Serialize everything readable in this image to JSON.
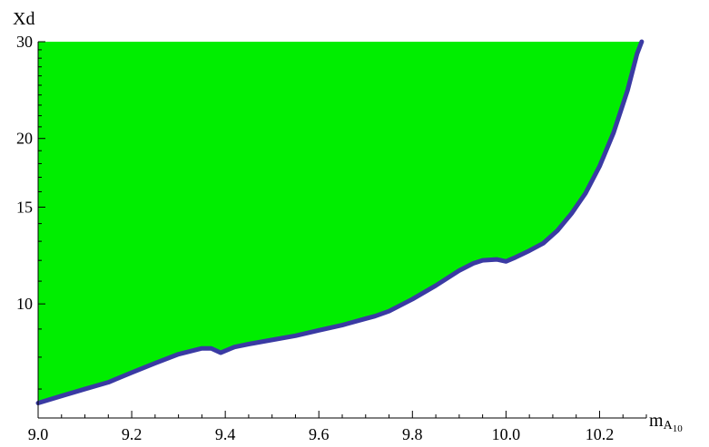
{
  "chart_data": {
    "type": "area",
    "title": "",
    "xlabel": {
      "main": "m",
      "sub": "A",
      "subsub": "10"
    },
    "ylabel": "Xd",
    "xlim": [
      9.0,
      10.3
    ],
    "ylim": [
      6.2,
      30
    ],
    "yscale": "log",
    "grid": false,
    "x_ticks": [
      {
        "value": 9.0,
        "label": "9.0"
      },
      {
        "value": 9.2,
        "label": "9.2"
      },
      {
        "value": 9.4,
        "label": "9.4"
      },
      {
        "value": 9.6,
        "label": "9.6"
      },
      {
        "value": 9.8,
        "label": "9.8"
      },
      {
        "value": 10.0,
        "label": "10.0"
      },
      {
        "value": 10.2,
        "label": "10.2"
      }
    ],
    "y_ticks": [
      {
        "value": 10,
        "label": "10"
      },
      {
        "value": 15,
        "label": "15"
      },
      {
        "value": 20,
        "label": "20"
      },
      {
        "value": 30,
        "label": "30"
      }
    ],
    "fill_color": "#00ee00",
    "line_color": "#3a3aa3",
    "series": [
      {
        "x": [
          9.0,
          9.05,
          9.1,
          9.15,
          9.2,
          9.25,
          9.3,
          9.35,
          9.37,
          9.39,
          9.42,
          9.45,
          9.5,
          9.55,
          9.6,
          9.65,
          9.7,
          9.72,
          9.75,
          9.8,
          9.85,
          9.9,
          9.93,
          9.95,
          9.98,
          9.99,
          10.0,
          10.02,
          10.05,
          10.08,
          10.11,
          10.14,
          10.17,
          10.2,
          10.23,
          10.26,
          10.28,
          10.29
        ],
        "y": [
          6.6,
          6.8,
          7.0,
          7.2,
          7.5,
          7.8,
          8.1,
          8.3,
          8.3,
          8.15,
          8.35,
          8.45,
          8.6,
          8.75,
          8.95,
          9.15,
          9.4,
          9.5,
          9.7,
          10.2,
          10.8,
          11.5,
          11.85,
          12.0,
          12.05,
          12.0,
          11.95,
          12.15,
          12.5,
          12.9,
          13.6,
          14.6,
          15.9,
          17.8,
          20.5,
          24.5,
          28.5,
          30.0
        ]
      }
    ]
  }
}
